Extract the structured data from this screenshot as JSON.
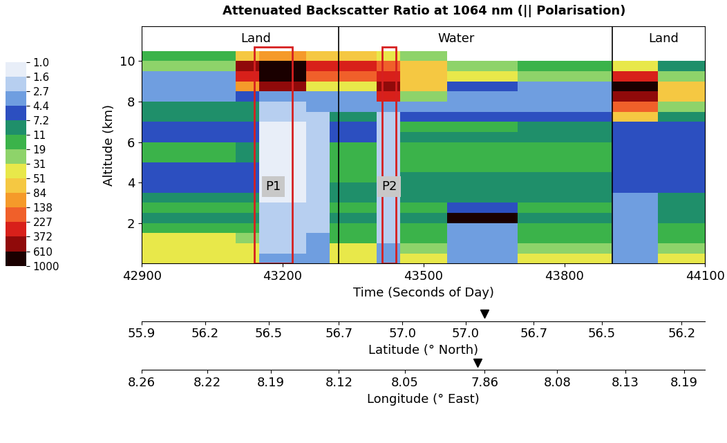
{
  "chart_data": {
    "type": "heatmap",
    "title": "Attenuated Backscatter Ratio at 1064 nm (|| Polarisation)",
    "x_label": "Time (Seconds of Day)",
    "y_label": "Altitude (km)",
    "xlim": [
      42900,
      44100
    ],
    "xticks": [
      42900,
      43200,
      43500,
      43800,
      44100
    ],
    "ylim": [
      0,
      11.7
    ],
    "yticks": [
      2,
      4,
      6,
      8,
      10
    ],
    "time_edges": [
      42900,
      42950,
      43000,
      43050,
      43100,
      43150,
      43200,
      43250,
      43300,
      43350,
      43400,
      43450,
      43500,
      43550,
      43600,
      43650,
      43700,
      43750,
      43800,
      43850,
      43900,
      43950,
      44000,
      44050,
      44100
    ],
    "altitude_edges": [
      0,
      0.5,
      1,
      1.5,
      2,
      2.5,
      3,
      3.5,
      4,
      4.5,
      5,
      5.5,
      6,
      6.5,
      7,
      7.5,
      8,
      8.5,
      9,
      9.5,
      10,
      10.5
    ],
    "cells": [
      [
        40,
        40,
        40,
        40,
        40,
        3,
        3,
        4,
        40,
        40,
        4,
        35,
        35,
        3,
        3,
        3,
        35,
        35,
        35,
        35,
        4,
        4,
        35,
        35
      ],
      [
        45,
        45,
        45,
        45,
        40,
        2,
        2,
        3,
        40,
        40,
        3,
        30,
        30,
        3,
        3,
        3,
        30,
        30,
        30,
        30,
        3,
        3,
        30,
        30
      ],
      [
        31,
        31,
        31,
        31,
        20,
        2,
        2,
        3,
        15,
        15,
        2,
        14,
        14,
        3,
        3,
        3,
        15,
        15,
        15,
        15,
        3,
        3,
        14,
        14
      ],
      [
        12,
        12,
        12,
        12,
        12,
        1.8,
        1.8,
        2.5,
        12,
        12,
        2,
        12,
        12,
        3,
        3,
        3,
        12,
        12,
        12,
        12,
        3,
        3,
        12,
        12
      ],
      [
        10,
        10,
        10,
        10,
        10,
        1.8,
        1.8,
        2.5,
        10,
        10,
        2,
        10,
        10,
        900,
        900,
        900,
        10,
        10,
        10,
        10,
        3,
        3,
        10,
        10
      ],
      [
        12,
        12,
        12,
        12,
        12,
        1.8,
        1.8,
        2.5,
        14,
        14,
        2,
        12,
        12,
        5,
        5,
        5,
        12,
        12,
        12,
        12,
        4,
        4,
        10,
        10
      ],
      [
        9,
        9,
        9,
        9,
        8,
        1.5,
        1.5,
        2.5,
        10,
        10,
        2,
        10,
        10,
        8,
        8,
        8,
        10,
        10,
        10,
        10,
        4,
        4,
        8,
        8
      ],
      [
        6,
        6,
        6,
        6,
        6,
        1.5,
        1.5,
        2.5,
        8,
        8,
        2,
        8,
        8,
        8,
        8,
        8,
        8,
        8,
        8,
        8,
        5,
        5,
        6,
        6
      ],
      [
        5,
        5,
        5,
        5,
        5,
        1.5,
        1.5,
        2,
        12,
        12,
        2,
        10,
        10,
        10,
        10,
        10,
        9,
        9,
        9,
        9,
        5,
        5,
        5,
        5
      ],
      [
        5,
        5,
        5,
        5,
        5,
        1.5,
        1.5,
        2,
        13,
        13,
        2,
        14,
        14,
        14,
        14,
        14,
        12,
        12,
        12,
        12,
        5,
        5,
        5,
        5
      ],
      [
        12,
        12,
        12,
        12,
        10,
        1.5,
        1.5,
        2,
        13,
        13,
        2,
        14,
        14,
        14,
        14,
        14,
        13,
        13,
        13,
        13,
        6,
        6,
        6,
        6
      ],
      [
        12,
        12,
        12,
        12,
        10,
        1.5,
        1.5,
        2,
        12,
        12,
        2,
        15,
        15,
        15,
        15,
        15,
        14,
        14,
        14,
        14,
        6,
        6,
        6,
        6
      ],
      [
        6,
        6,
        6,
        6,
        6,
        1.5,
        1.5,
        2,
        6,
        6,
        2,
        8,
        8,
        9,
        9,
        9,
        8,
        8,
        8,
        8,
        5,
        5,
        5,
        5
      ],
      [
        5,
        5,
        5,
        5,
        5,
        1.5,
        1.5,
        2,
        5,
        5,
        2,
        12,
        12,
        14,
        14,
        14,
        9,
        9,
        9,
        9,
        5,
        5,
        5,
        5
      ],
      [
        10,
        10,
        10,
        10,
        9,
        1.8,
        1.8,
        2.5,
        9,
        9,
        2,
        5,
        5,
        5,
        5,
        5,
        5,
        5,
        5,
        5,
        60,
        60,
        8,
        8
      ],
      [
        9,
        9,
        9,
        9,
        8,
        2,
        2,
        3,
        4,
        4,
        3,
        4,
        4,
        4,
        4,
        4,
        4,
        4,
        4,
        4,
        150,
        150,
        30,
        30
      ],
      [
        4,
        4,
        4,
        4,
        5,
        3,
        3,
        4,
        4,
        4,
        300,
        30,
        30,
        4,
        4,
        4,
        4,
        4,
        4,
        4,
        400,
        400,
        80,
        80
      ],
      [
        3,
        3,
        3,
        3,
        100,
        600,
        600,
        50,
        40,
        40,
        400,
        60,
        60,
        5,
        5,
        5,
        4,
        4,
        4,
        4,
        800,
        800,
        60,
        60
      ],
      [
        4,
        4,
        4,
        4,
        300,
        1000,
        1000,
        200,
        200,
        200,
        300,
        80,
        80,
        40,
        40,
        40,
        20,
        20,
        20,
        20,
        300,
        300,
        20,
        20
      ],
      [
        30,
        30,
        30,
        30,
        500,
        800,
        800,
        300,
        300,
        300,
        200,
        60,
        60,
        20,
        20,
        20,
        12,
        12,
        12,
        12,
        50,
        50,
        10,
        10
      ],
      [
        15,
        15,
        15,
        15,
        60,
        100,
        100,
        60,
        80,
        80,
        40,
        20,
        20,
        null,
        null,
        null,
        null,
        null,
        null,
        null,
        null,
        null,
        null,
        null
      ]
    ],
    "colorbar": {
      "ticks": [
        {
          "value": 1,
          "label": "1.0"
        },
        1.6,
        2.7,
        4.4,
        7.2,
        11,
        19,
        31,
        51,
        84,
        138,
        227,
        372,
        610,
        1000
      ],
      "colors": [
        "#e8eef8",
        "#b7cff0",
        "#6f9ee0",
        "#2c4fc0",
        "#1f8f6a",
        "#3bb34a",
        "#8ed36a",
        "#e8e84a",
        "#f5c842",
        "#f59a2a",
        "#f0602a",
        "#d8201a",
        "#900a0a",
        "#1a0000"
      ]
    },
    "regions": [
      {
        "label": "Land",
        "x": 43143
      },
      {
        "label": "Water",
        "x": 43570
      },
      {
        "label": "Land",
        "x": 44012
      }
    ],
    "region_dividers": [
      43320,
      43902
    ],
    "region_label_altitude": 11.1,
    "boxes": [
      {
        "label": "P1",
        "x": [
          43140,
          43220
        ],
        "y": [
          0,
          10.7
        ],
        "label_altitude": 3.8
      },
      {
        "label": "P2",
        "x": [
          43412,
          43442
        ],
        "y": [
          0,
          10.7
        ],
        "label_altitude": 3.8
      }
    ],
    "latitude_axis": {
      "label": "Latitude (° North)",
      "xticks": [
        {
          "value": 42900,
          "label": "55.9"
        },
        {
          "value": 43035,
          "label": "56.2"
        },
        {
          "value": 43170,
          "label": "56.5"
        },
        {
          "value": 43320,
          "label": "56.7"
        },
        {
          "value": 43455,
          "label": "57.0"
        },
        {
          "value": 43590,
          "label": "57.0"
        },
        {
          "value": 43735,
          "label": "56.7"
        },
        {
          "value": 43880,
          "label": "56.5"
        },
        {
          "value": 44050,
          "label": "56.2"
        }
      ],
      "marker_x": 43630
    },
    "longitude_axis": {
      "label": "Longitude (° East)",
      "xticks": [
        {
          "value": 42900,
          "label": "8.26"
        },
        {
          "value": 43040,
          "label": "8.22"
        },
        {
          "value": 43175,
          "label": "8.19"
        },
        {
          "value": 43320,
          "label": "8.12"
        },
        {
          "value": 43460,
          "label": "8.05"
        },
        {
          "value": 43630,
          "label": "7.86"
        },
        {
          "value": 43785,
          "label": "8.08"
        },
        {
          "value": 43930,
          "label": "8.13"
        },
        {
          "value": 44055,
          "label": "8.19"
        }
      ],
      "marker_x": 43615
    }
  }
}
